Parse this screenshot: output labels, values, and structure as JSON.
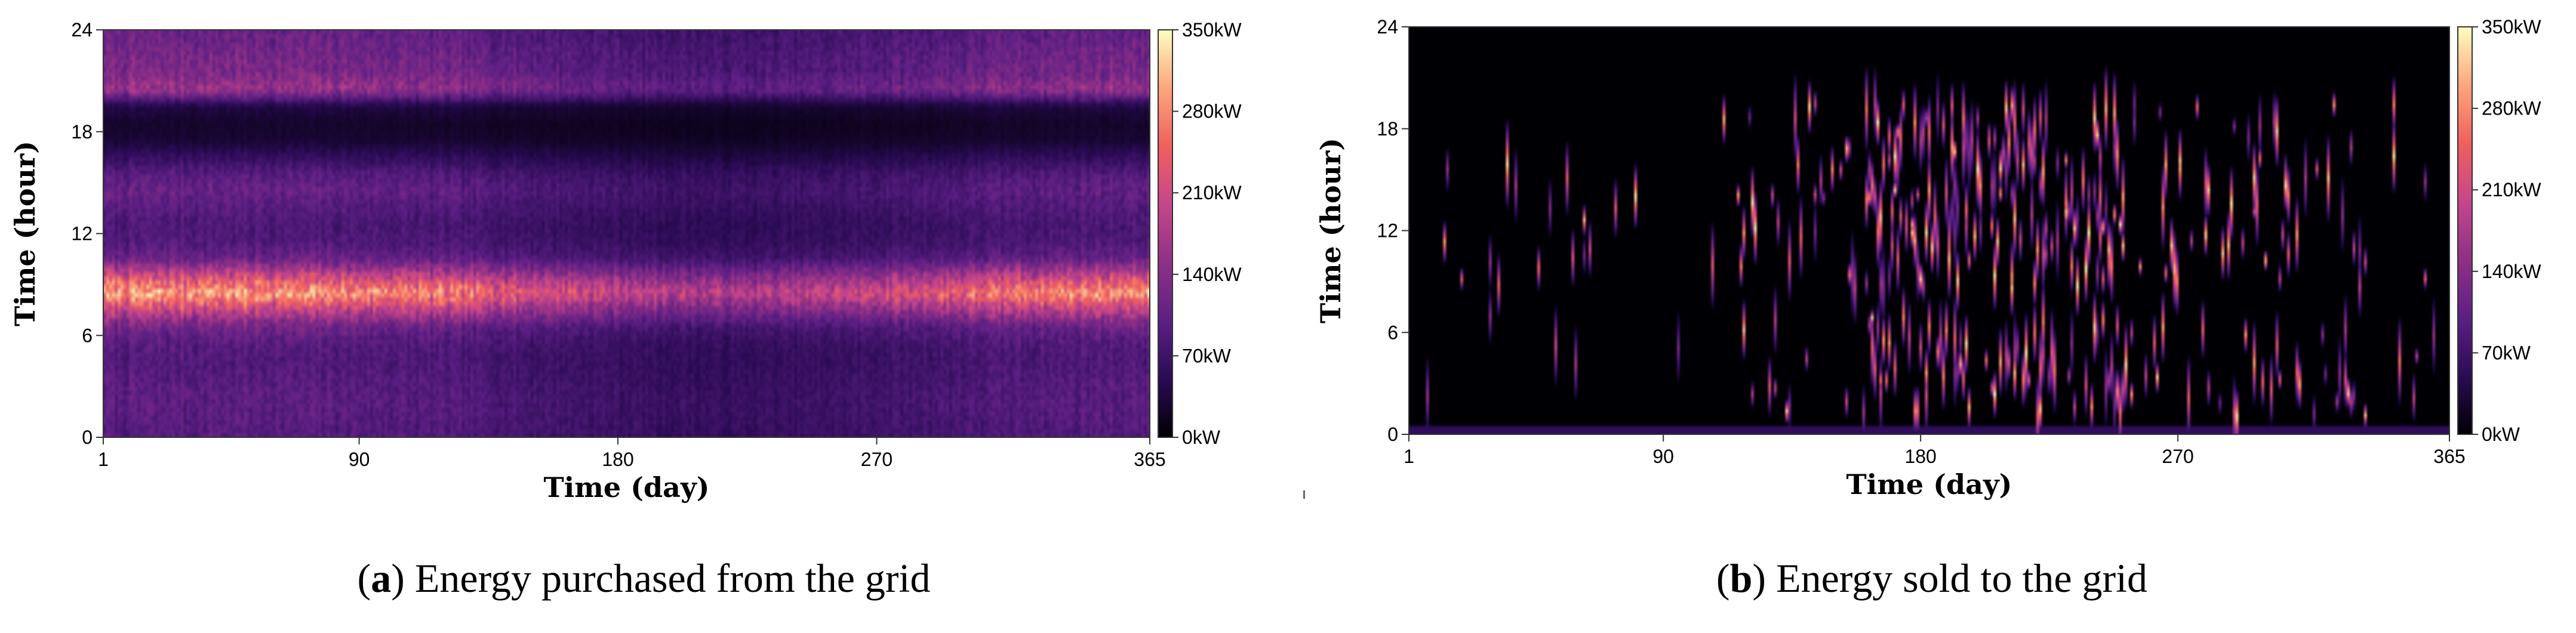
{
  "chart_data": [
    {
      "type": "heatmap",
      "panel_label": "a",
      "caption": "Energy purchased from the grid",
      "xlabel": "Time (day)",
      "ylabel": "Time (hour)",
      "x_ticks": [
        "1",
        "90",
        "180",
        "270",
        "365"
      ],
      "y_ticks": [
        "0",
        "6",
        "12",
        "18",
        "24"
      ],
      "xlim": [
        1,
        365
      ],
      "ylim": [
        0,
        24
      ],
      "colorbar": {
        "ticks": [
          "0kW",
          "70kW",
          "140kW",
          "210kW",
          "280kW",
          "350kW"
        ],
        "range": [
          0,
          350
        ],
        "unit": "kW"
      },
      "colormap": [
        "#000004",
        "#2a0b54",
        "#5c1f84",
        "#8f3086",
        "#c6468b",
        "#f0605d",
        "#fca67d",
        "#fcfdbf"
      ],
      "hourly_profile_kw": [
        95,
        100,
        100,
        95,
        90,
        95,
        120,
        200,
        300,
        210,
        115,
        90,
        85,
        95,
        110,
        95,
        60,
        30,
        25,
        40,
        160,
        130,
        125,
        115
      ],
      "seasonal_factor": [
        1.0,
        1.0,
        1.0,
        0.98,
        0.95,
        0.9,
        0.8,
        0.72,
        0.65,
        0.62,
        0.66,
        0.72,
        0.8,
        0.9,
        0.95,
        0.98
      ]
    },
    {
      "type": "heatmap",
      "panel_label": "b",
      "caption": "Energy sold to the grid",
      "xlabel": "Time (day)",
      "ylabel": "Time (hour)",
      "x_ticks": [
        "1",
        "90",
        "180",
        "270",
        "365"
      ],
      "y_ticks": [
        "0",
        "6",
        "12",
        "18",
        "24"
      ],
      "xlim": [
        1,
        365
      ],
      "ylim": [
        0,
        24
      ],
      "colorbar": {
        "ticks": [
          "0kW",
          "70kW",
          "140kW",
          "210kW",
          "280kW",
          "350kW"
        ],
        "range": [
          0,
          350
        ],
        "unit": "kW"
      },
      "colormap": [
        "#000004",
        "#2a0b54",
        "#5c1f84",
        "#8f3086",
        "#c6468b",
        "#f0605d",
        "#fca67d",
        "#fcfdbf"
      ],
      "active_hour_bands": [
        [
          1,
          7
        ],
        [
          8.5,
          19.5
        ]
      ],
      "active_day_range": [
        110,
        335
      ],
      "peak_day_range": [
        160,
        255
      ],
      "baseline_kw_hour0": 55
    }
  ]
}
